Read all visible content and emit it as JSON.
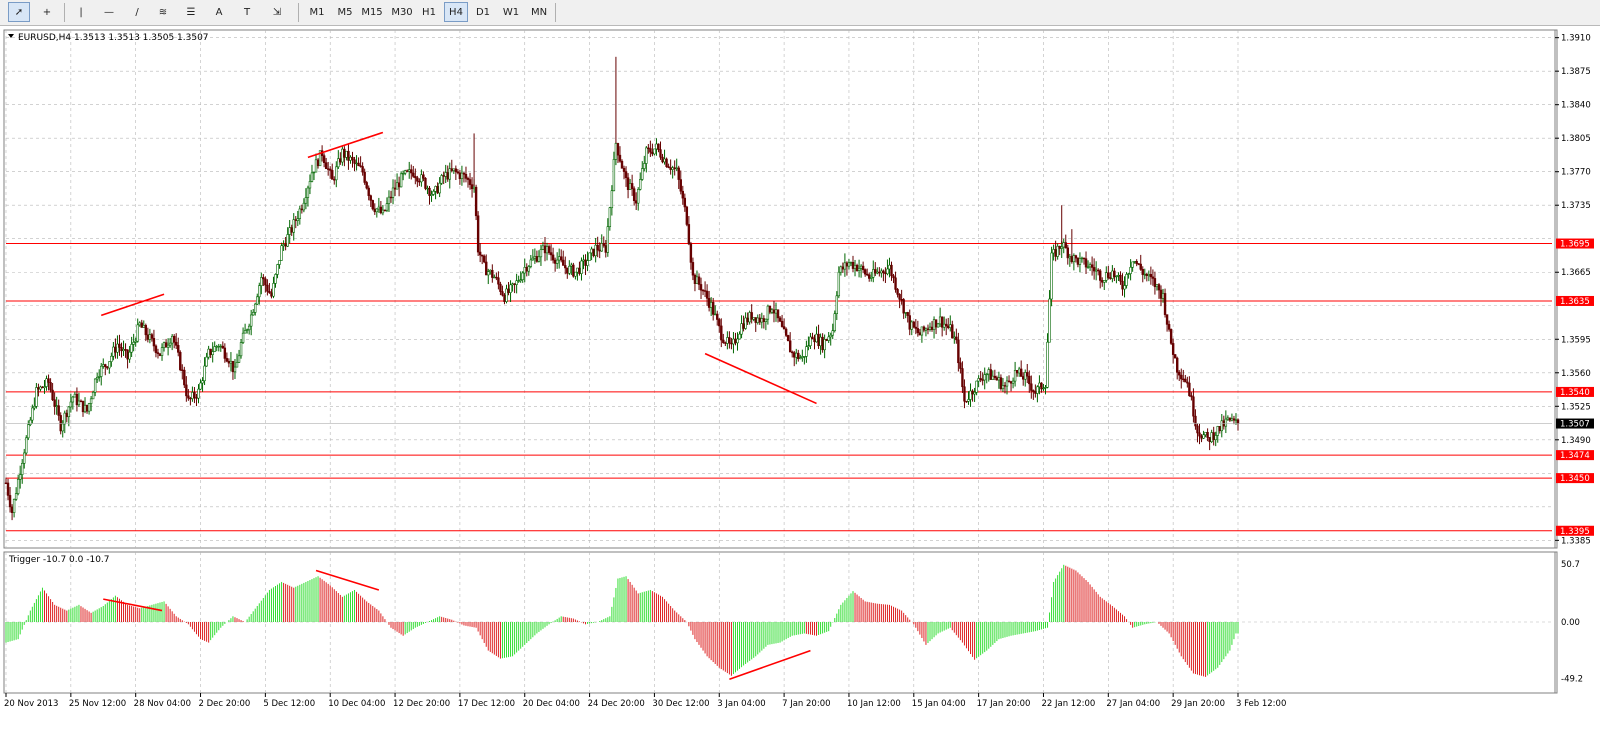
{
  "toolbar": {
    "tools": [
      {
        "name": "cursor-tool",
        "glyph": "➚"
      },
      {
        "name": "crosshair-tool",
        "glyph": "+"
      },
      {
        "name": "vertical-line-tool",
        "glyph": "|"
      },
      {
        "name": "horizontal-line-tool",
        "glyph": "—"
      },
      {
        "name": "trendline-tool",
        "glyph": "/"
      },
      {
        "name": "equidistant-channel-tool",
        "glyph": "≋"
      },
      {
        "name": "fibonacci-tool",
        "glyph": "☰"
      },
      {
        "name": "text-tool",
        "glyph": "A"
      },
      {
        "name": "text-label-tool",
        "glyph": "T"
      },
      {
        "name": "arrows-tool",
        "glyph": "⇲"
      }
    ],
    "timeframes": [
      "M1",
      "M5",
      "M15",
      "M30",
      "H1",
      "H4",
      "D1",
      "W1",
      "MN"
    ],
    "active_timeframe": "H4"
  },
  "colors": {
    "up_candle": "#006600",
    "down_candle": "#660000",
    "sr_line": "#ff0000",
    "grid": "#b7b7b7",
    "hist_up": "#33dd33",
    "hist_down": "#dd2222"
  },
  "main_panel": {
    "symbol_header": "EURUSD,H4  1.3513 1.3513 1.3505 1.3507",
    "current_price": "1.3507",
    "y_ticks": [
      "1.3910",
      "1.3875",
      "1.3840",
      "1.3805",
      "1.3770",
      "1.3735",
      "1.3665",
      "1.3595",
      "1.3560",
      "1.3525",
      "1.3490",
      "1.3385"
    ],
    "levels": [
      "1.3695",
      "1.3635",
      "1.3540",
      "1.3474",
      "1.3450",
      "1.3395"
    ]
  },
  "indicator_panel": {
    "header": "Trigger -10.7 0.0 -10.7",
    "y_ticks": [
      "50.7",
      "0.00",
      "-49.2"
    ]
  },
  "x_labels": [
    "20 Nov 2013",
    "25 Nov 12:00",
    "28 Nov 04:00",
    "2 Dec 20:00",
    "5 Dec 12:00",
    "10 Dec 04:00",
    "12 Dec 20:00",
    "17 Dec 12:00",
    "20 Dec 04:00",
    "24 Dec 20:00",
    "30 Dec 12:00",
    "3 Jan 04:00",
    "7 Jan 20:00",
    "10 Jan 12:00",
    "15 Jan 04:00",
    "17 Jan 20:00",
    "22 Jan 12:00",
    "27 Jan 04:00",
    "29 Jan 20:00",
    "3 Feb 12:00"
  ],
  "chart_data": {
    "type": "candlestick",
    "symbol": "EURUSD",
    "timeframe": "H4",
    "ohlc_last": {
      "open": 1.3513,
      "high": 1.3513,
      "low": 1.3505,
      "close": 1.3507
    },
    "ylim": [
      1.3377,
      1.3918
    ],
    "horizontal_levels": [
      1.3695,
      1.3635,
      1.354,
      1.3474,
      1.345,
      1.3395
    ],
    "close_path": [
      [
        0,
        1.3445
      ],
      [
        3,
        1.3415
      ],
      [
        8,
        1.347
      ],
      [
        15,
        1.354
      ],
      [
        21,
        1.355
      ],
      [
        27,
        1.3505
      ],
      [
        33,
        1.3535
      ],
      [
        40,
        1.352
      ],
      [
        45,
        1.356
      ],
      [
        50,
        1.357
      ],
      [
        55,
        1.359
      ],
      [
        60,
        1.3575
      ],
      [
        66,
        1.361
      ],
      [
        71,
        1.3595
      ],
      [
        76,
        1.358
      ],
      [
        82,
        1.36
      ],
      [
        87,
        1.356
      ],
      [
        90,
        1.353
      ],
      [
        95,
        1.354
      ],
      [
        100,
        1.358
      ],
      [
        105,
        1.359
      ],
      [
        110,
        1.3575
      ],
      [
        113,
        1.356
      ],
      [
        116,
        1.359
      ],
      [
        121,
        1.362
      ],
      [
        126,
        1.366
      ],
      [
        131,
        1.364
      ],
      [
        136,
        1.369
      ],
      [
        141,
        1.371
      ],
      [
        146,
        1.3735
      ],
      [
        151,
        1.377
      ],
      [
        156,
        1.379
      ],
      [
        161,
        1.376
      ],
      [
        166,
        1.379
      ],
      [
        171,
        1.378
      ],
      [
        176,
        1.377
      ],
      [
        181,
        1.3735
      ],
      [
        186,
        1.3725
      ],
      [
        191,
        1.375
      ],
      [
        196,
        1.3765
      ],
      [
        201,
        1.377
      ],
      [
        206,
        1.376
      ],
      [
        211,
        1.3745
      ],
      [
        216,
        1.3765
      ],
      [
        221,
        1.377
      ],
      [
        226,
        1.3765
      ],
      [
        231,
        1.3755
      ],
      [
        233,
        1.369
      ],
      [
        236,
        1.367
      ],
      [
        241,
        1.366
      ],
      [
        246,
        1.364
      ],
      [
        251,
        1.365
      ],
      [
        256,
        1.367
      ],
      [
        261,
        1.368
      ],
      [
        266,
        1.369
      ],
      [
        271,
        1.368
      ],
      [
        276,
        1.367
      ],
      [
        281,
        1.3665
      ],
      [
        286,
        1.3675
      ],
      [
        291,
        1.369
      ],
      [
        296,
        1.369
      ],
      [
        301,
        1.38
      ],
      [
        306,
        1.376
      ],
      [
        311,
        1.374
      ],
      [
        316,
        1.379
      ],
      [
        321,
        1.3795
      ],
      [
        326,
        1.378
      ],
      [
        331,
        1.377
      ],
      [
        336,
        1.372
      ],
      [
        339,
        1.366
      ],
      [
        343,
        1.365
      ],
      [
        348,
        1.363
      ],
      [
        353,
        1.36
      ],
      [
        358,
        1.3585
      ],
      [
        363,
        1.361
      ],
      [
        368,
        1.362
      ],
      [
        373,
        1.3615
      ],
      [
        378,
        1.363
      ],
      [
        383,
        1.3605
      ],
      [
        388,
        1.358
      ],
      [
        393,
        1.3575
      ],
      [
        398,
        1.36
      ],
      [
        403,
        1.359
      ],
      [
        408,
        1.3605
      ],
      [
        411,
        1.3665
      ],
      [
        416,
        1.3675
      ],
      [
        421,
        1.367
      ],
      [
        426,
        1.366
      ],
      [
        431,
        1.3665
      ],
      [
        436,
        1.367
      ],
      [
        441,
        1.364
      ],
      [
        446,
        1.361
      ],
      [
        451,
        1.36
      ],
      [
        456,
        1.361
      ],
      [
        461,
        1.3615
      ],
      [
        466,
        1.3605
      ],
      [
        469,
        1.359
      ],
      [
        473,
        1.353
      ],
      [
        478,
        1.3545
      ],
      [
        483,
        1.356
      ],
      [
        488,
        1.3555
      ],
      [
        493,
        1.3545
      ],
      [
        498,
        1.356
      ],
      [
        503,
        1.3555
      ],
      [
        508,
        1.354
      ],
      [
        513,
        1.355
      ],
      [
        516,
        1.368
      ],
      [
        521,
        1.3695
      ],
      [
        526,
        1.368
      ],
      [
        531,
        1.3675
      ],
      [
        536,
        1.367
      ],
      [
        541,
        1.366
      ],
      [
        546,
        1.3665
      ],
      [
        551,
        1.365
      ],
      [
        556,
        1.368
      ],
      [
        561,
        1.3665
      ],
      [
        566,
        1.3655
      ],
      [
        571,
        1.364
      ],
      [
        574,
        1.36
      ],
      [
        578,
        1.3565
      ],
      [
        583,
        1.355
      ],
      [
        588,
        1.35
      ],
      [
        593,
        1.349
      ],
      [
        598,
        1.35
      ],
      [
        603,
        1.351
      ],
      [
        607,
        1.3507
      ]
    ],
    "indicator_path": [
      [
        0,
        -18
      ],
      [
        6,
        -15
      ],
      [
        12,
        10
      ],
      [
        18,
        30
      ],
      [
        24,
        15
      ],
      [
        30,
        10
      ],
      [
        36,
        15
      ],
      [
        42,
        8
      ],
      [
        48,
        14
      ],
      [
        54,
        23
      ],
      [
        60,
        15
      ],
      [
        66,
        12
      ],
      [
        72,
        15
      ],
      [
        78,
        18
      ],
      [
        84,
        5
      ],
      [
        90,
        -2
      ],
      [
        96,
        -15
      ],
      [
        100,
        -18
      ],
      [
        106,
        -5
      ],
      [
        112,
        5
      ],
      [
        118,
        0
      ],
      [
        124,
        14
      ],
      [
        130,
        28
      ],
      [
        136,
        35
      ],
      [
        142,
        30
      ],
      [
        148,
        35
      ],
      [
        154,
        40
      ],
      [
        160,
        32
      ],
      [
        166,
        22
      ],
      [
        172,
        28
      ],
      [
        178,
        18
      ],
      [
        184,
        10
      ],
      [
        190,
        -5
      ],
      [
        196,
        -12
      ],
      [
        202,
        -5
      ],
      [
        208,
        0
      ],
      [
        214,
        5
      ],
      [
        220,
        2
      ],
      [
        226,
        -3
      ],
      [
        232,
        -5
      ],
      [
        238,
        -25
      ],
      [
        244,
        -32
      ],
      [
        250,
        -30
      ],
      [
        256,
        -20
      ],
      [
        262,
        -10
      ],
      [
        268,
        -2
      ],
      [
        274,
        5
      ],
      [
        280,
        3
      ],
      [
        286,
        -2
      ],
      [
        292,
        0
      ],
      [
        298,
        5
      ],
      [
        302,
        38
      ],
      [
        306,
        40
      ],
      [
        312,
        25
      ],
      [
        318,
        28
      ],
      [
        324,
        22
      ],
      [
        330,
        10
      ],
      [
        336,
        0
      ],
      [
        340,
        -15
      ],
      [
        346,
        -30
      ],
      [
        352,
        -40
      ],
      [
        358,
        -47
      ],
      [
        364,
        -38
      ],
      [
        370,
        -30
      ],
      [
        376,
        -20
      ],
      [
        382,
        -18
      ],
      [
        388,
        -12
      ],
      [
        394,
        -10
      ],
      [
        400,
        -12
      ],
      [
        406,
        -8
      ],
      [
        412,
        15
      ],
      [
        418,
        27
      ],
      [
        424,
        18
      ],
      [
        430,
        16
      ],
      [
        436,
        15
      ],
      [
        442,
        10
      ],
      [
        448,
        -2
      ],
      [
        454,
        -20
      ],
      [
        460,
        -10
      ],
      [
        466,
        -5
      ],
      [
        472,
        -18
      ],
      [
        478,
        -33
      ],
      [
        484,
        -25
      ],
      [
        490,
        -15
      ],
      [
        496,
        -12
      ],
      [
        502,
        -10
      ],
      [
        508,
        -8
      ],
      [
        514,
        -5
      ],
      [
        517,
        35
      ],
      [
        522,
        50
      ],
      [
        528,
        45
      ],
      [
        534,
        35
      ],
      [
        540,
        22
      ],
      [
        546,
        14
      ],
      [
        552,
        5
      ],
      [
        556,
        -5
      ],
      [
        562,
        -2
      ],
      [
        568,
        0
      ],
      [
        574,
        -10
      ],
      [
        580,
        -30
      ],
      [
        586,
        -45
      ],
      [
        592,
        -48
      ],
      [
        598,
        -40
      ],
      [
        604,
        -25
      ],
      [
        607,
        -10
      ]
    ],
    "x_tick_bars": [
      0,
      32,
      64,
      96,
      128,
      160,
      192,
      224,
      256,
      288,
      320,
      352,
      384,
      416,
      448,
      480,
      512,
      544,
      576,
      608
    ],
    "total_bars": 608
  }
}
